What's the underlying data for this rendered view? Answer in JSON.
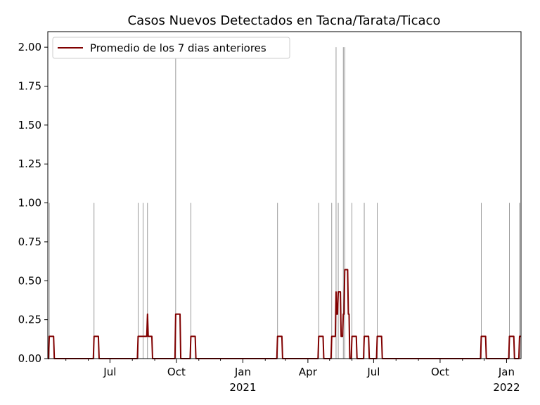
{
  "chart_data": {
    "type": "line",
    "title": "Casos Nuevos Detectados en Tacna/Tarata/Ticaco",
    "xlabel": "",
    "ylabel": "",
    "x_range": [
      "2020-04-06",
      "2022-01-21"
    ],
    "ylim": [
      0,
      2.1
    ],
    "y_ticks": [
      {
        "v": 0.0,
        "label": "0.00"
      },
      {
        "v": 0.25,
        "label": "0.25"
      },
      {
        "v": 0.5,
        "label": "0.50"
      },
      {
        "v": 0.75,
        "label": "0.75"
      },
      {
        "v": 1.0,
        "label": "1.00"
      },
      {
        "v": 1.25,
        "label": "1.25"
      },
      {
        "v": 1.5,
        "label": "1.50"
      },
      {
        "v": 1.75,
        "label": "1.75"
      },
      {
        "v": 2.0,
        "label": "2.00"
      }
    ],
    "x_ticks": [
      {
        "date": "2020-07-01",
        "label": "Jul",
        "sub": ""
      },
      {
        "date": "2020-10-01",
        "label": "Oct",
        "sub": ""
      },
      {
        "date": "2021-01-01",
        "label": "Jan",
        "sub": "2021"
      },
      {
        "date": "2021-04-01",
        "label": "Apr",
        "sub": ""
      },
      {
        "date": "2021-07-01",
        "label": "Jul",
        "sub": ""
      },
      {
        "date": "2021-10-01",
        "label": "Oct",
        "sub": ""
      },
      {
        "date": "2022-01-01",
        "label": "Jan",
        "sub": "2022"
      }
    ],
    "minor_ticks": [
      "2020-05-01",
      "2020-06-01",
      "2020-08-01",
      "2020-09-01",
      "2020-11-01",
      "2020-12-01",
      "2021-02-01",
      "2021-03-01",
      "2021-05-01",
      "2021-06-01",
      "2021-08-01",
      "2021-09-01",
      "2021-11-01",
      "2021-12-01"
    ],
    "series": [
      {
        "name": "",
        "kind": "daily_cases_bars",
        "color": "#808080",
        "points": [
          {
            "x": "2020-04-08",
            "y": 1
          },
          {
            "x": "2020-06-09",
            "y": 1
          },
          {
            "x": "2020-08-09",
            "y": 1
          },
          {
            "x": "2020-08-16",
            "y": 1
          },
          {
            "x": "2020-08-22",
            "y": 1
          },
          {
            "x": "2020-09-30",
            "y": 2
          },
          {
            "x": "2020-10-21",
            "y": 1
          },
          {
            "x": "2021-02-18",
            "y": 1
          },
          {
            "x": "2021-04-16",
            "y": 1
          },
          {
            "x": "2021-05-04",
            "y": 1
          },
          {
            "x": "2021-05-10",
            "y": 2
          },
          {
            "x": "2021-05-13",
            "y": 1
          },
          {
            "x": "2021-05-20",
            "y": 2
          },
          {
            "x": "2021-05-22",
            "y": 2
          },
          {
            "x": "2021-06-01",
            "y": 1
          },
          {
            "x": "2021-06-18",
            "y": 1
          },
          {
            "x": "2021-07-06",
            "y": 1
          },
          {
            "x": "2021-11-27",
            "y": 1
          },
          {
            "x": "2022-01-05",
            "y": 1
          },
          {
            "x": "2022-01-19",
            "y": 1
          }
        ]
      },
      {
        "name": "Promedio de los 7 dias anteriores",
        "kind": "rolling_mean_line",
        "color": "#800000"
      }
    ],
    "legend": {
      "placement": "top-left",
      "entries": [
        "Promedio de los 7 dias anteriores"
      ]
    },
    "grid": false
  }
}
